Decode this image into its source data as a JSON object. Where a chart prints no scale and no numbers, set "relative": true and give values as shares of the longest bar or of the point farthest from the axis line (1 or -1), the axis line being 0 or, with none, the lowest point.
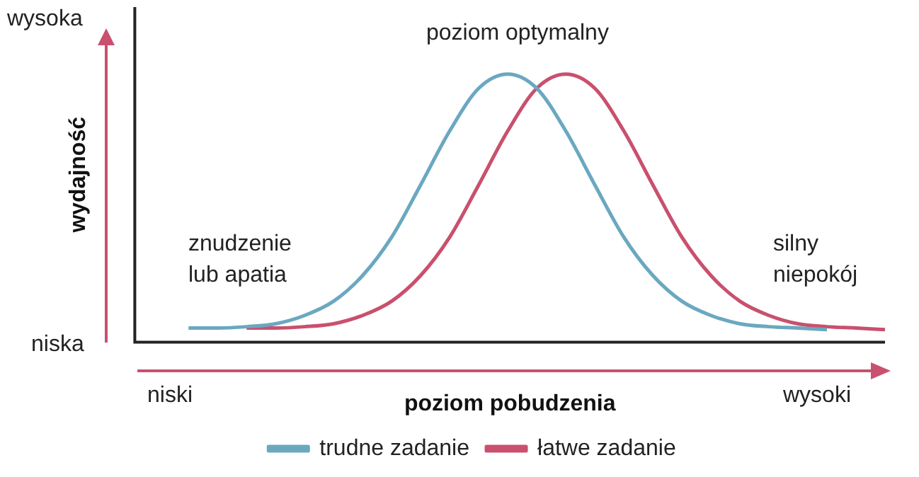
{
  "chart_data": {
    "type": "line",
    "relative": true,
    "xlabel": "poziom pobudzenia",
    "ylabel": "wydajność",
    "categories": [
      null,
      null,
      null,
      null,
      null,
      null,
      null,
      null,
      null,
      null,
      null,
      null,
      null,
      null,
      null,
      null,
      null,
      null,
      null,
      null,
      null,
      null,
      null,
      null,
      null
    ],
    "series": [
      {
        "name": "trudne zadanie",
        "color": "#6aa8c0",
        "values": [
          0.053,
          0.053,
          0.058,
          0.069,
          0.1,
          0.153,
          0.249,
          0.392,
          0.587,
          0.788,
          0.947,
          1,
          0.947,
          0.788,
          0.587,
          0.392,
          0.249,
          0.153,
          0.1,
          0.069,
          0.058,
          0.053,
          0.047,
          null,
          null
        ]
      },
      {
        "name": "łatwe zadanie",
        "color": "#c9506e",
        "values": [
          null,
          null,
          0.053,
          0.053,
          0.058,
          0.069,
          0.1,
          0.153,
          0.249,
          0.392,
          0.587,
          0.788,
          0.947,
          1,
          0.947,
          0.788,
          0.587,
          0.392,
          0.249,
          0.153,
          0.1,
          0.069,
          0.058,
          0.053,
          0.047
        ]
      }
    ],
    "annotations": [
      "wysoka",
      "niska",
      "niski",
      "wysoki",
      "poziom optymalny",
      "znudzenie\nlub apatia",
      "silny\nniepokój"
    ],
    "legend": "bottom",
    "marker": "none",
    "line_style": "solid",
    "grid": false
  }
}
